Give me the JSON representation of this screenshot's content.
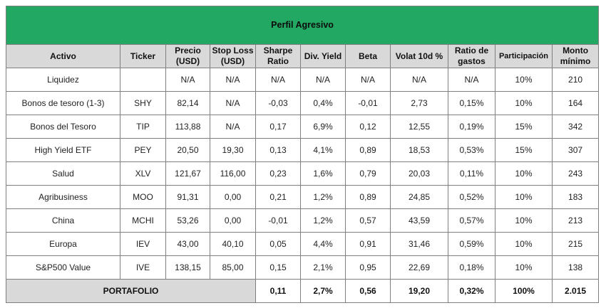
{
  "title": "Perfil Agresivo",
  "headers": {
    "activo": "Activo",
    "ticker": "Ticker",
    "precio": "Precio (USD)",
    "stop_loss": "Stop Loss (USD)",
    "sharpe": "Sharpe Ratio",
    "div_yield": "Div. Yield",
    "beta": "Beta",
    "volat": "Volat 10d %",
    "ratio_gastos": "Ratio de gastos",
    "participacion": "Participación",
    "monto": "Monto mínimo"
  },
  "rows": [
    {
      "activo": "Liquidez",
      "ticker": "",
      "precio": "N/A",
      "stop_loss": "N/A",
      "sharpe": "N/A",
      "div_yield": "N/A",
      "beta": "N/A",
      "volat": "N/A",
      "ratio_gastos": "N/A",
      "participacion": "10%",
      "monto": "210"
    },
    {
      "activo": "Bonos de tesoro (1-3)",
      "ticker": "SHY",
      "precio": "82,14",
      "stop_loss": "N/A",
      "sharpe": "-0,03",
      "div_yield": "0,4%",
      "beta": "-0,01",
      "volat": "2,73",
      "ratio_gastos": "0,15%",
      "participacion": "10%",
      "monto": "164"
    },
    {
      "activo": "Bonos del Tesoro",
      "ticker": "TIP",
      "precio": "113,88",
      "stop_loss": "N/A",
      "sharpe": "0,17",
      "div_yield": "6,9%",
      "beta": "0,12",
      "volat": "12,55",
      "ratio_gastos": "0,19%",
      "participacion": "15%",
      "monto": "342"
    },
    {
      "activo": "High Yield ETF",
      "ticker": "PEY",
      "precio": "20,50",
      "stop_loss": "19,30",
      "sharpe": "0,13",
      "div_yield": "4,1%",
      "beta": "0,89",
      "volat": "18,53",
      "ratio_gastos": "0,53%",
      "participacion": "15%",
      "monto": "307"
    },
    {
      "activo": "Salud",
      "ticker": "XLV",
      "precio": "121,67",
      "stop_loss": "116,00",
      "sharpe": "0,23",
      "div_yield": "1,6%",
      "beta": "0,79",
      "volat": "20,03",
      "ratio_gastos": "0,11%",
      "participacion": "10%",
      "monto": "243"
    },
    {
      "activo": "Agribusiness",
      "ticker": "MOO",
      "precio": "91,31",
      "stop_loss": "0,00",
      "sharpe": "0,21",
      "div_yield": "1,2%",
      "beta": "0,89",
      "volat": "24,85",
      "ratio_gastos": "0,52%",
      "participacion": "10%",
      "monto": "183"
    },
    {
      "activo": "China",
      "ticker": "MCHI",
      "precio": "53,26",
      "stop_loss": "0,00",
      "sharpe": "-0,01",
      "div_yield": "1,2%",
      "beta": "0,57",
      "volat": "43,59",
      "ratio_gastos": "0,57%",
      "participacion": "10%",
      "monto": "213"
    },
    {
      "activo": "Europa",
      "ticker": "IEV",
      "precio": "43,00",
      "stop_loss": "40,10",
      "sharpe": "0,05",
      "div_yield": "4,4%",
      "beta": "0,91",
      "volat": "31,46",
      "ratio_gastos": "0,59%",
      "participacion": "10%",
      "monto": "215"
    },
    {
      "activo": "S&P500 Value",
      "ticker": "IVE",
      "precio": "138,15",
      "stop_loss": "85,00",
      "sharpe": "0,15",
      "div_yield": "2,1%",
      "beta": "0,95",
      "volat": "22,69",
      "ratio_gastos": "0,18%",
      "participacion": "10%",
      "monto": "138"
    }
  ],
  "total": {
    "label": "PORTAFOLIO",
    "sharpe": "0,11",
    "div_yield": "2,7%",
    "beta": "0,56",
    "volat": "19,20",
    "ratio_gastos": "0,32%",
    "participacion": "100%",
    "monto": "2.015"
  },
  "colors": {
    "title_bg": "#22a862",
    "header_bg": "#d9d9d9",
    "border": "#7f7f7f"
  }
}
